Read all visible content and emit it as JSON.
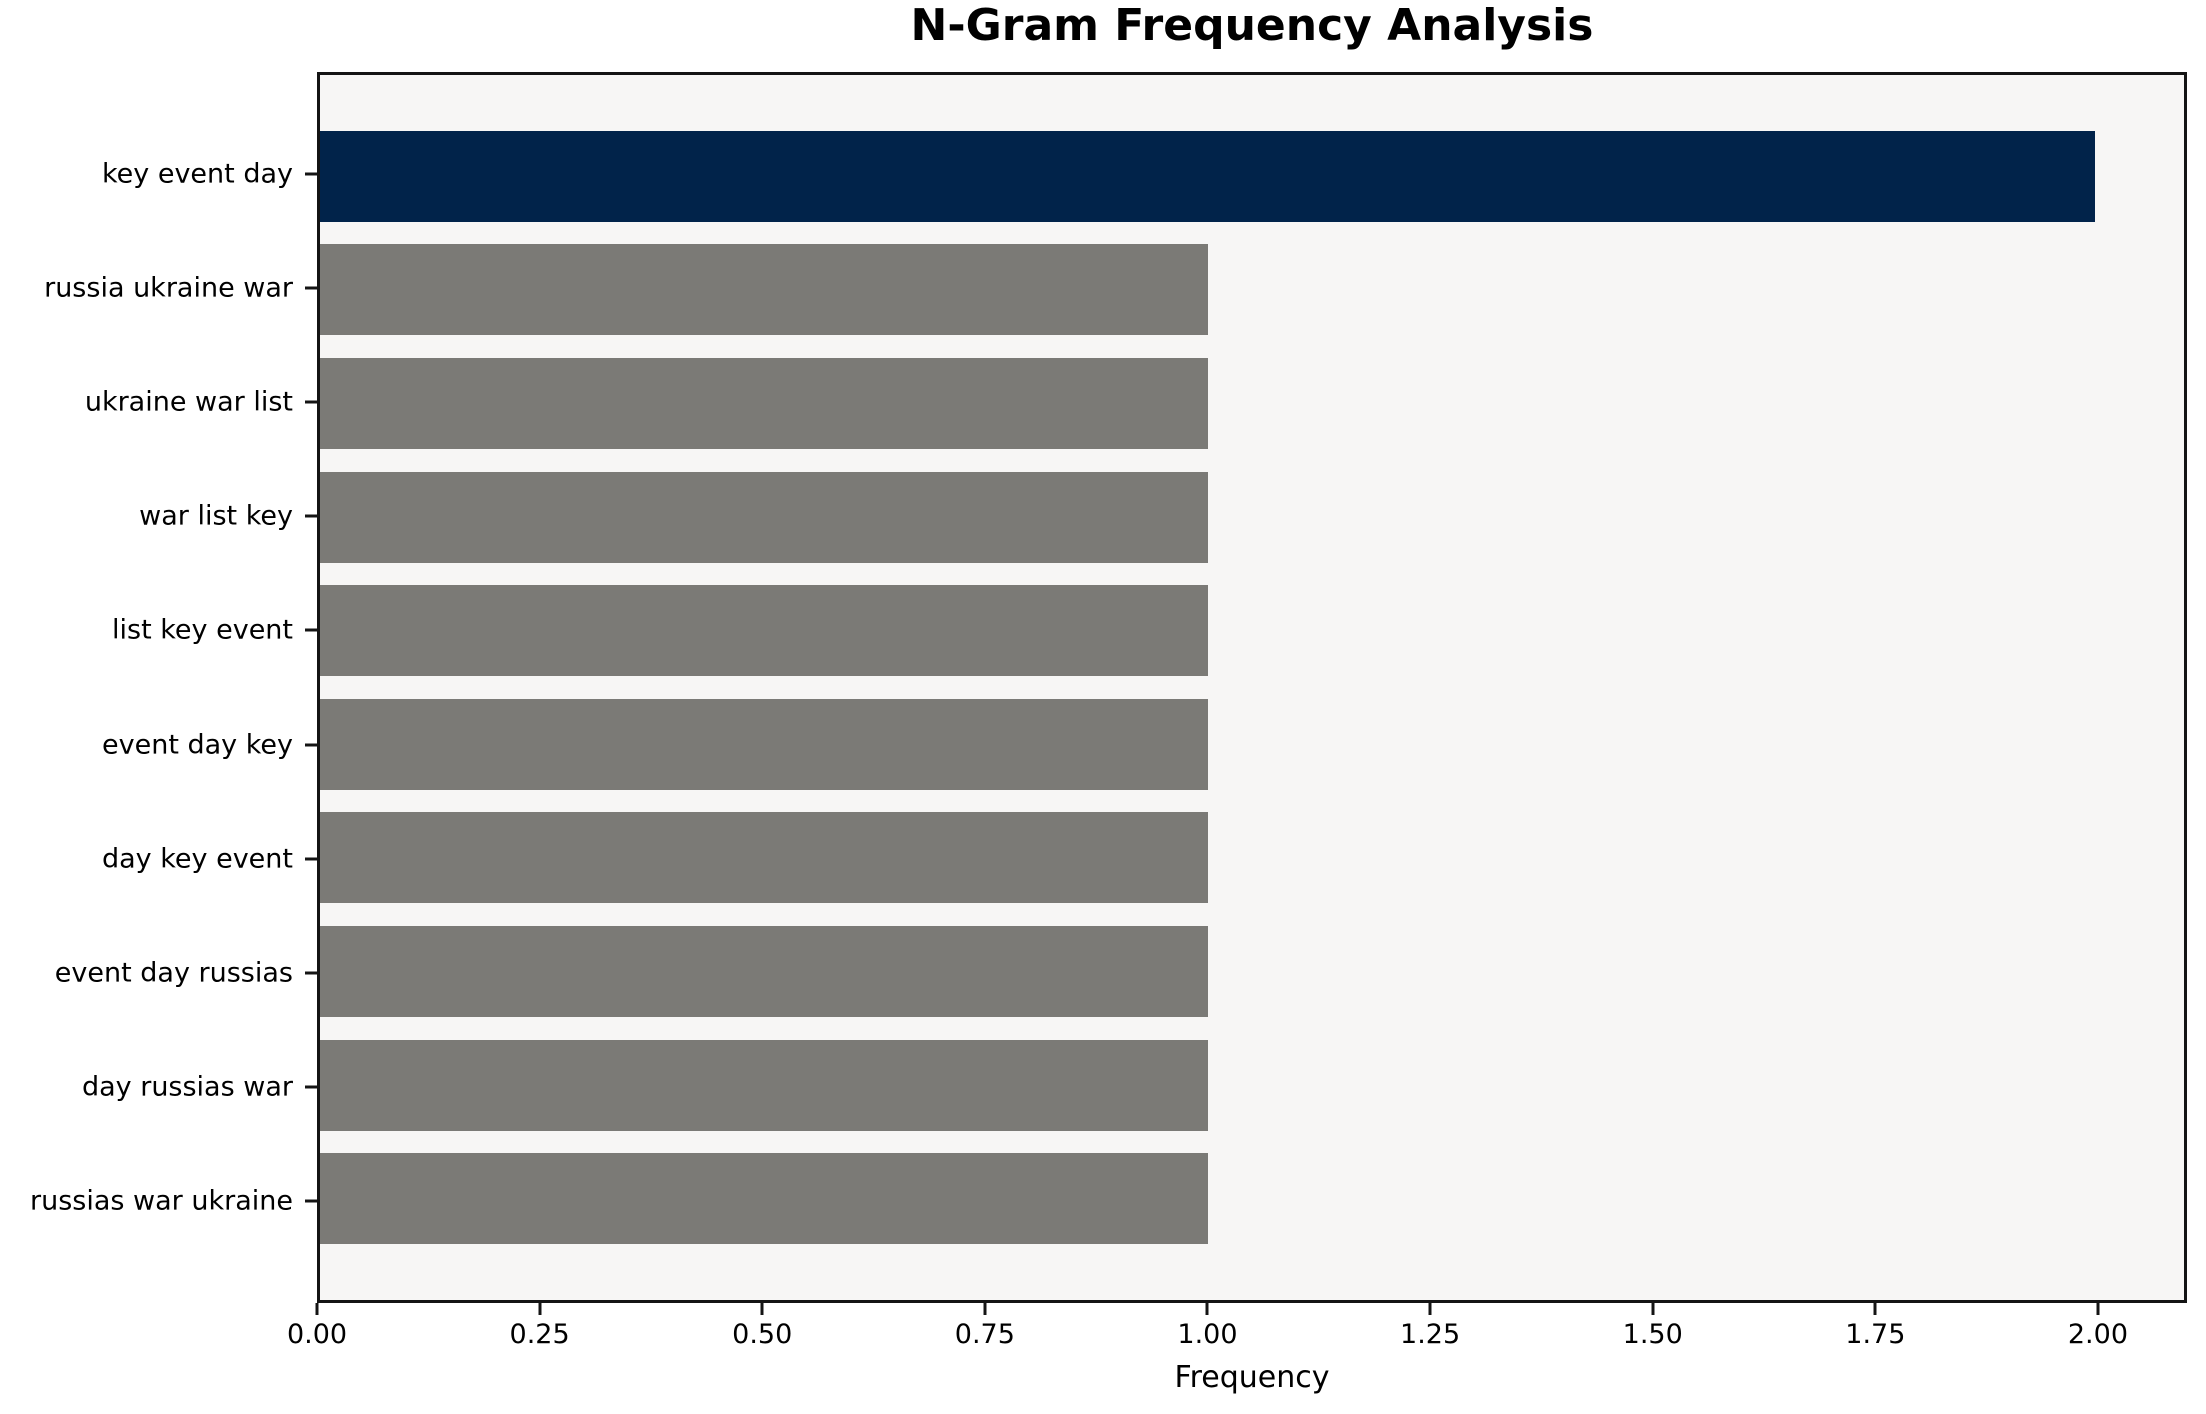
{
  "chart_data": {
    "type": "bar",
    "orientation": "horizontal",
    "title": "N-Gram Frequency Analysis",
    "xlabel": "Frequency",
    "ylabel": "",
    "categories": [
      "key event day",
      "russia ukraine war",
      "ukraine war list",
      "war list key",
      "list key event",
      "event day key",
      "day key event",
      "event day russias",
      "day russias war",
      "russias war ukraine"
    ],
    "values": [
      2,
      1,
      1,
      1,
      1,
      1,
      1,
      1,
      1,
      1
    ],
    "xlim": [
      0,
      2.1
    ],
    "x_tick_values": [
      0.0,
      0.25,
      0.5,
      0.75,
      1.0,
      1.25,
      1.5,
      1.75,
      2.0
    ],
    "x_tick_labels": [
      "0.00",
      "0.25",
      "0.50",
      "0.75",
      "1.00",
      "1.25",
      "1.50",
      "1.75",
      "2.00"
    ],
    "grid": false,
    "legend": null,
    "colors": {
      "highlight_bar": "#01234a",
      "default_bar": "#7b7a76",
      "plot_background": "#f7f6f5",
      "figure_background": "#ffffff",
      "spine": "#141414",
      "text": "#000000"
    }
  }
}
